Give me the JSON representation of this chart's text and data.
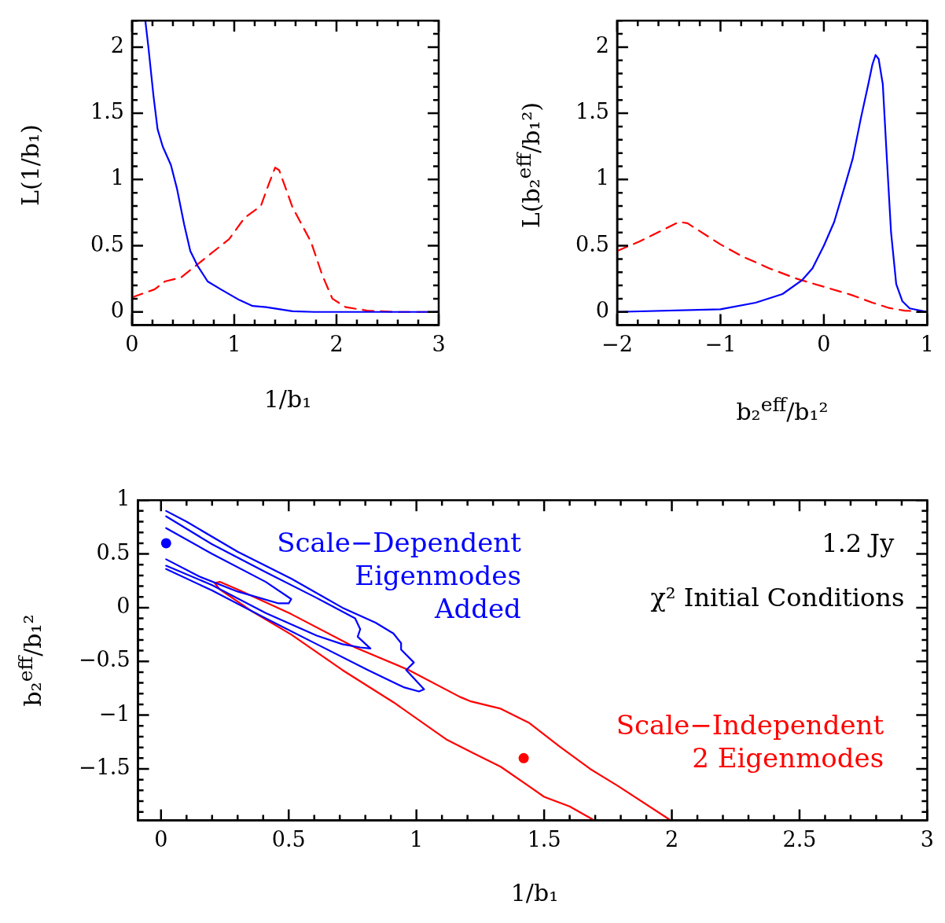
{
  "chart_data": [
    {
      "type": "line",
      "xlabel": "1/b₁",
      "ylabel": "L(1/b₁)",
      "xlim": [
        0,
        3
      ],
      "ylim": [
        -0.1,
        2.2
      ],
      "xticks": [
        0,
        1,
        2,
        3
      ],
      "yticks": [
        0,
        0.5,
        1,
        1.5,
        2
      ],
      "series": [
        {
          "color": "#0000ff",
          "line_style": "solid",
          "x": [
            0.13,
            0.16,
            0.21,
            0.25,
            0.3,
            0.38,
            0.44,
            0.51,
            0.57,
            0.64,
            0.74,
            0.87,
            1.05,
            1.18,
            1.31,
            1.57,
            1.78,
            3
          ],
          "values": [
            2.2,
            2.0,
            1.63,
            1.38,
            1.25,
            1.11,
            0.93,
            0.66,
            0.46,
            0.35,
            0.23,
            0.17,
            0.09,
            0.045,
            0.036,
            0.005,
            0,
            0
          ]
        },
        {
          "color": "#ff0000",
          "line_style": "dashed",
          "x": [
            0,
            0.22,
            0.32,
            0.48,
            0.69,
            0.95,
            1.1,
            1.26,
            1.34,
            1.4,
            1.44,
            1.57,
            1.75,
            1.86,
            1.96,
            2.09,
            2.3,
            2.56,
            3
          ],
          "values": [
            0.11,
            0.17,
            0.23,
            0.26,
            0.39,
            0.55,
            0.71,
            0.8,
            0.97,
            1.09,
            1.07,
            0.79,
            0.53,
            0.28,
            0.1,
            0.036,
            0.01,
            0,
            0
          ]
        }
      ]
    },
    {
      "type": "line",
      "xlabel": "b₂$^{eff}$/b₁²",
      "ylabel": "L(b₂$^{eff}$/b₁²)",
      "xlim": [
        -2,
        1
      ],
      "ylim": [
        -0.1,
        2.2
      ],
      "xticks": [
        -2,
        -1,
        0,
        1
      ],
      "yticks": [
        0,
        0.5,
        1,
        1.5,
        2
      ],
      "series": [
        {
          "color": "#0000ff",
          "line_style": "solid",
          "x": [
            -2,
            -1,
            -0.66,
            -0.4,
            -0.21,
            -0.11,
            0,
            0.1,
            0.21,
            0.28,
            0.36,
            0.43,
            0.47,
            0.5,
            0.53,
            0.57,
            0.61,
            0.65,
            0.7,
            0.76,
            0.83,
            1
          ],
          "values": [
            0,
            0.02,
            0.07,
            0.135,
            0.24,
            0.33,
            0.5,
            0.68,
            0.97,
            1.16,
            1.47,
            1.72,
            1.87,
            1.94,
            1.91,
            1.72,
            1.15,
            0.6,
            0.21,
            0.08,
            0.027,
            0
          ]
        },
        {
          "color": "#ff0000",
          "line_style": "dashed",
          "x": [
            -2,
            -1.79,
            -1.58,
            -1.4,
            -1.32,
            -1.0,
            -0.79,
            -0.53,
            -0.26,
            0,
            0.26,
            0.47,
            0.63,
            0.78,
            1
          ],
          "values": [
            0.46,
            0.53,
            0.61,
            0.68,
            0.67,
            0.51,
            0.42,
            0.33,
            0.25,
            0.19,
            0.13,
            0.07,
            0.03,
            0.01,
            0
          ]
        }
      ]
    },
    {
      "type": "line",
      "xlabel": "1/b₁",
      "ylabel": "b₂$^{eff}$/b₁²",
      "xlim": [
        -0.09,
        3
      ],
      "ylim": [
        -1.98,
        1
      ],
      "xticks": [
        0,
        0.5,
        1,
        1.5,
        2,
        2.5,
        3
      ],
      "yticks": [
        -1.5,
        -1,
        -0.5,
        0,
        0.5,
        1
      ],
      "annotations": [
        "1.2 Jy",
        "χ² Initial Conditions"
      ],
      "series": [
        {
          "name": "Scale−Dependent Eigenmodes Added",
          "color": "#0000ff",
          "line_style": "solid",
          "x": [
            0.02,
            0.1,
            0.3,
            0.51,
            0.71,
            0.84,
            0.91,
            0.94,
            0.94,
            0.99,
            0.96,
            1.03,
            1.01,
            0.95,
            0.81,
            0.61,
            0.41,
            0.2,
            0.02
          ],
          "values": [
            0.9,
            0.8,
            0.52,
            0.27,
            0.0,
            -0.14,
            -0.24,
            -0.33,
            -0.39,
            -0.51,
            -0.58,
            -0.76,
            -0.78,
            -0.74,
            -0.58,
            -0.34,
            -0.1,
            0.16,
            0.36
          ]
        },
        {
          "color": "#0000ff",
          "line_style": "solid",
          "x": [
            0.02,
            0.2,
            0.41,
            0.61,
            0.76,
            0.78,
            0.77,
            0.82,
            0.78,
            0.71,
            0.61,
            0.41,
            0.2,
            0.02
          ],
          "values": [
            0.85,
            0.59,
            0.33,
            0.09,
            -0.1,
            -0.2,
            -0.27,
            -0.38,
            -0.37,
            -0.34,
            -0.26,
            -0.05,
            0.21,
            0.39
          ]
        },
        {
          "color": "#0000ff",
          "line_style": "solid",
          "x": [
            0.02,
            0.2,
            0.41,
            0.51,
            0.5,
            0.46,
            0.3,
            0.15,
            0.02
          ],
          "values": [
            0.74,
            0.5,
            0.24,
            0.08,
            0.04,
            0.04,
            0.15,
            0.29,
            0.45
          ]
        },
        {
          "name": "Scale−Independent 2 Eigenmodes",
          "color": "#ff0000",
          "line_style": "solid",
          "x": [
            1.69,
            1.6,
            1.5,
            1.44,
            1.33,
            1.22,
            1.12,
            0.91,
            0.71,
            0.51,
            0.36,
            0.23,
            0.21,
            0.23,
            0.3,
            0.51,
            0.76,
            0.97,
            1.17,
            1.21,
            1.33,
            1.44,
            1.56,
            1.68,
            1.79,
            1.99
          ],
          "values": [
            -1.97,
            -1.85,
            -1.76,
            -1.66,
            -1.48,
            -1.35,
            -1.23,
            -0.88,
            -0.58,
            -0.25,
            -0.04,
            0.17,
            0.23,
            0.24,
            0.17,
            -0.06,
            -0.37,
            -0.58,
            -0.83,
            -0.87,
            -0.94,
            -1.07,
            -1.29,
            -1.5,
            -1.66,
            -1.97
          ]
        },
        {
          "type": "scatter",
          "marker": "circle",
          "color": "#0000ff",
          "x": [
            0.02
          ],
          "values": [
            0.6
          ]
        },
        {
          "type": "scatter",
          "marker": "circle",
          "color": "#ff0000",
          "x": [
            1.42
          ],
          "values": [
            -1.4
          ]
        }
      ]
    }
  ]
}
